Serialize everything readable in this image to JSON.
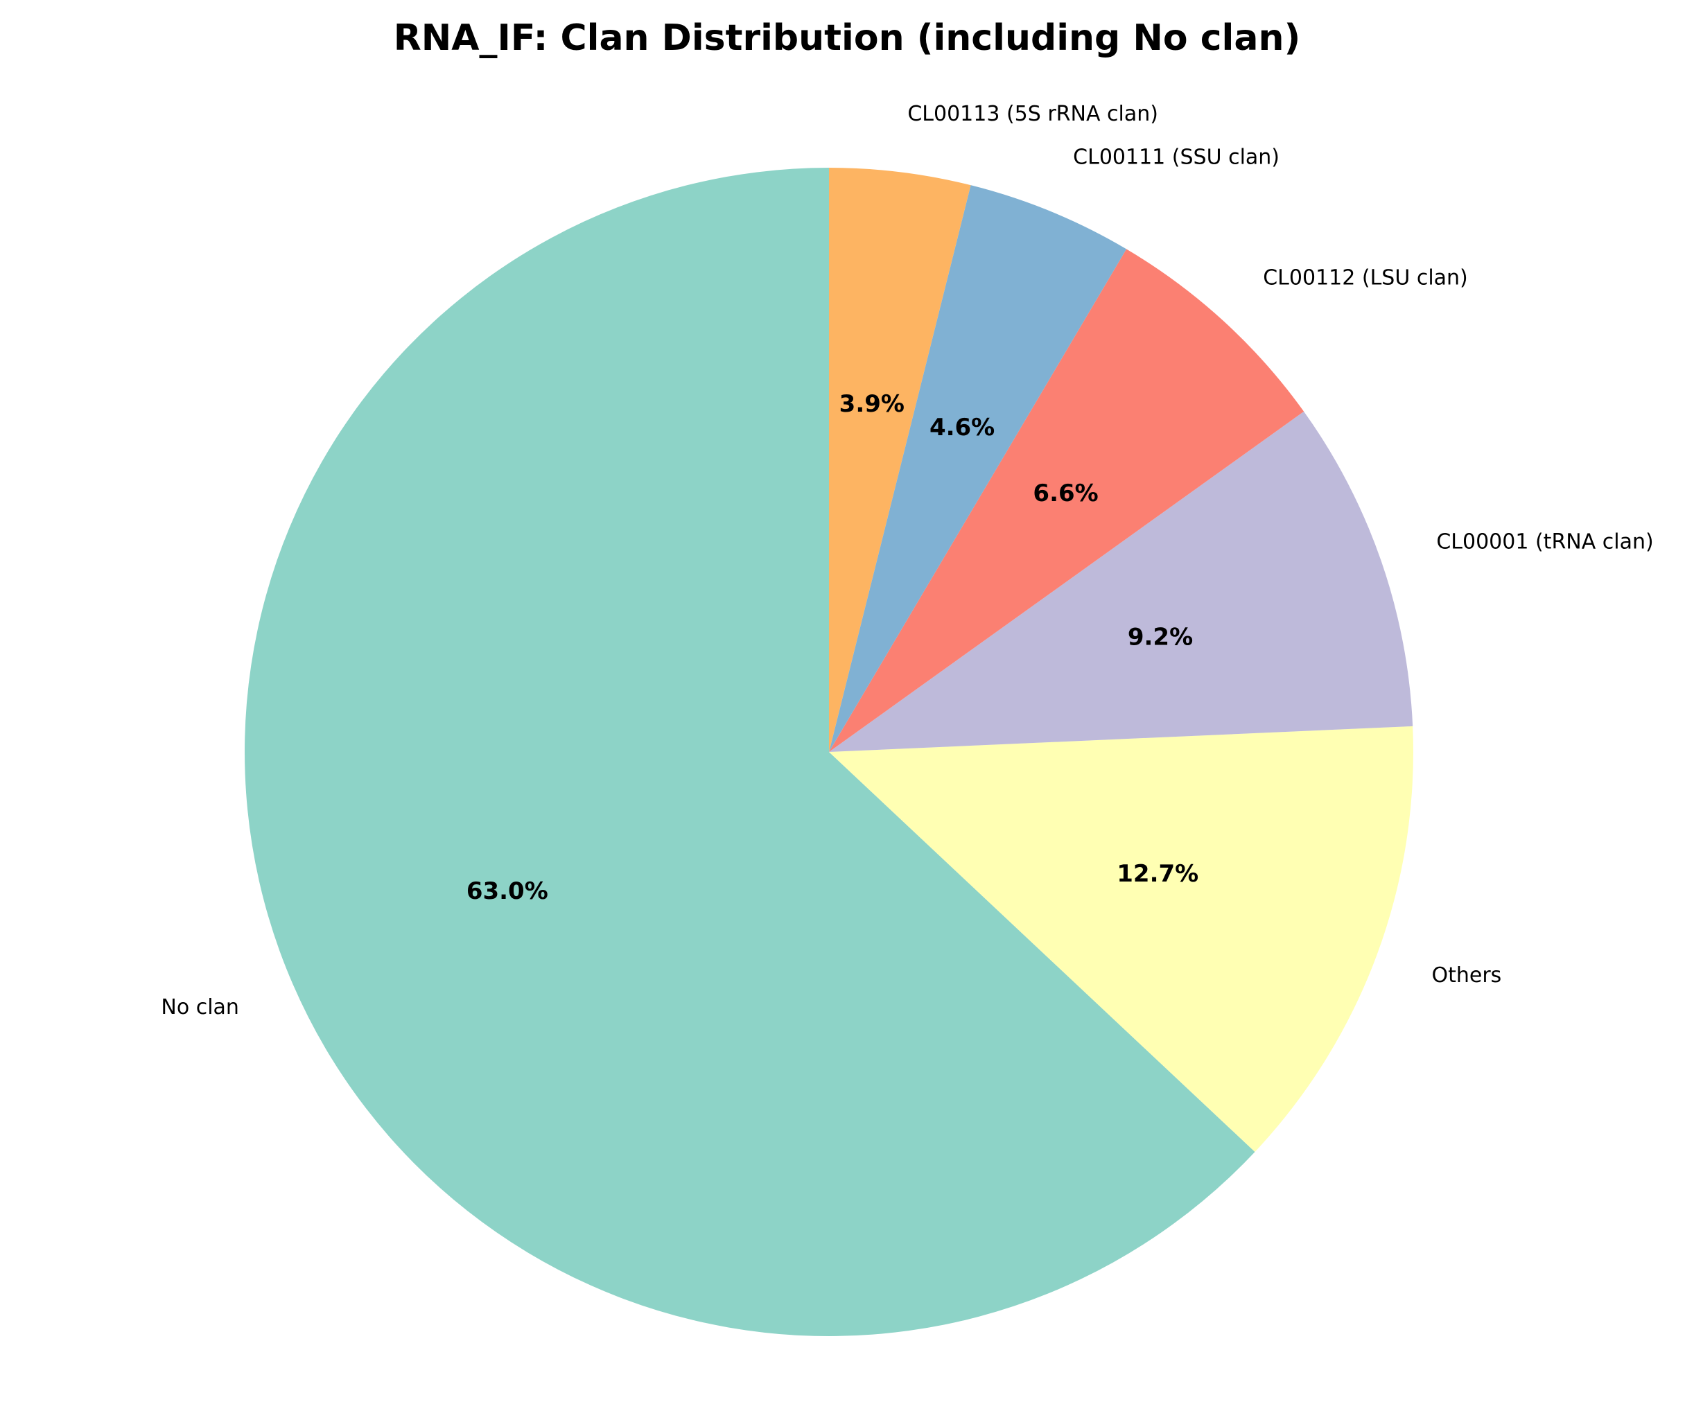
{
  "chart_data": {
    "type": "pie",
    "title": "RNA_IF: Clan Distribution (including No clan)",
    "start_angle_deg": 90,
    "direction": "counterclockwise",
    "slices": [
      {
        "label": "No clan",
        "value": 63.0,
        "pct_text": "63.0%",
        "color": "#8dd3c7"
      },
      {
        "label": "Others",
        "value": 12.7,
        "pct_text": "12.7%",
        "color": "#ffffb3"
      },
      {
        "label": "CL00001 (tRNA clan)",
        "value": 9.2,
        "pct_text": "9.2%",
        "color": "#bebada"
      },
      {
        "label": "CL00112 (LSU clan)",
        "value": 6.6,
        "pct_text": "6.6%",
        "color": "#fb8072"
      },
      {
        "label": "CL00111 (SSU clan)",
        "value": 4.6,
        "pct_text": "4.6%",
        "color": "#80b1d3"
      },
      {
        "label": "CL00113 (5S rRNA clan)",
        "value": 3.9,
        "pct_text": "3.9%",
        "color": "#fdb462"
      }
    ]
  }
}
